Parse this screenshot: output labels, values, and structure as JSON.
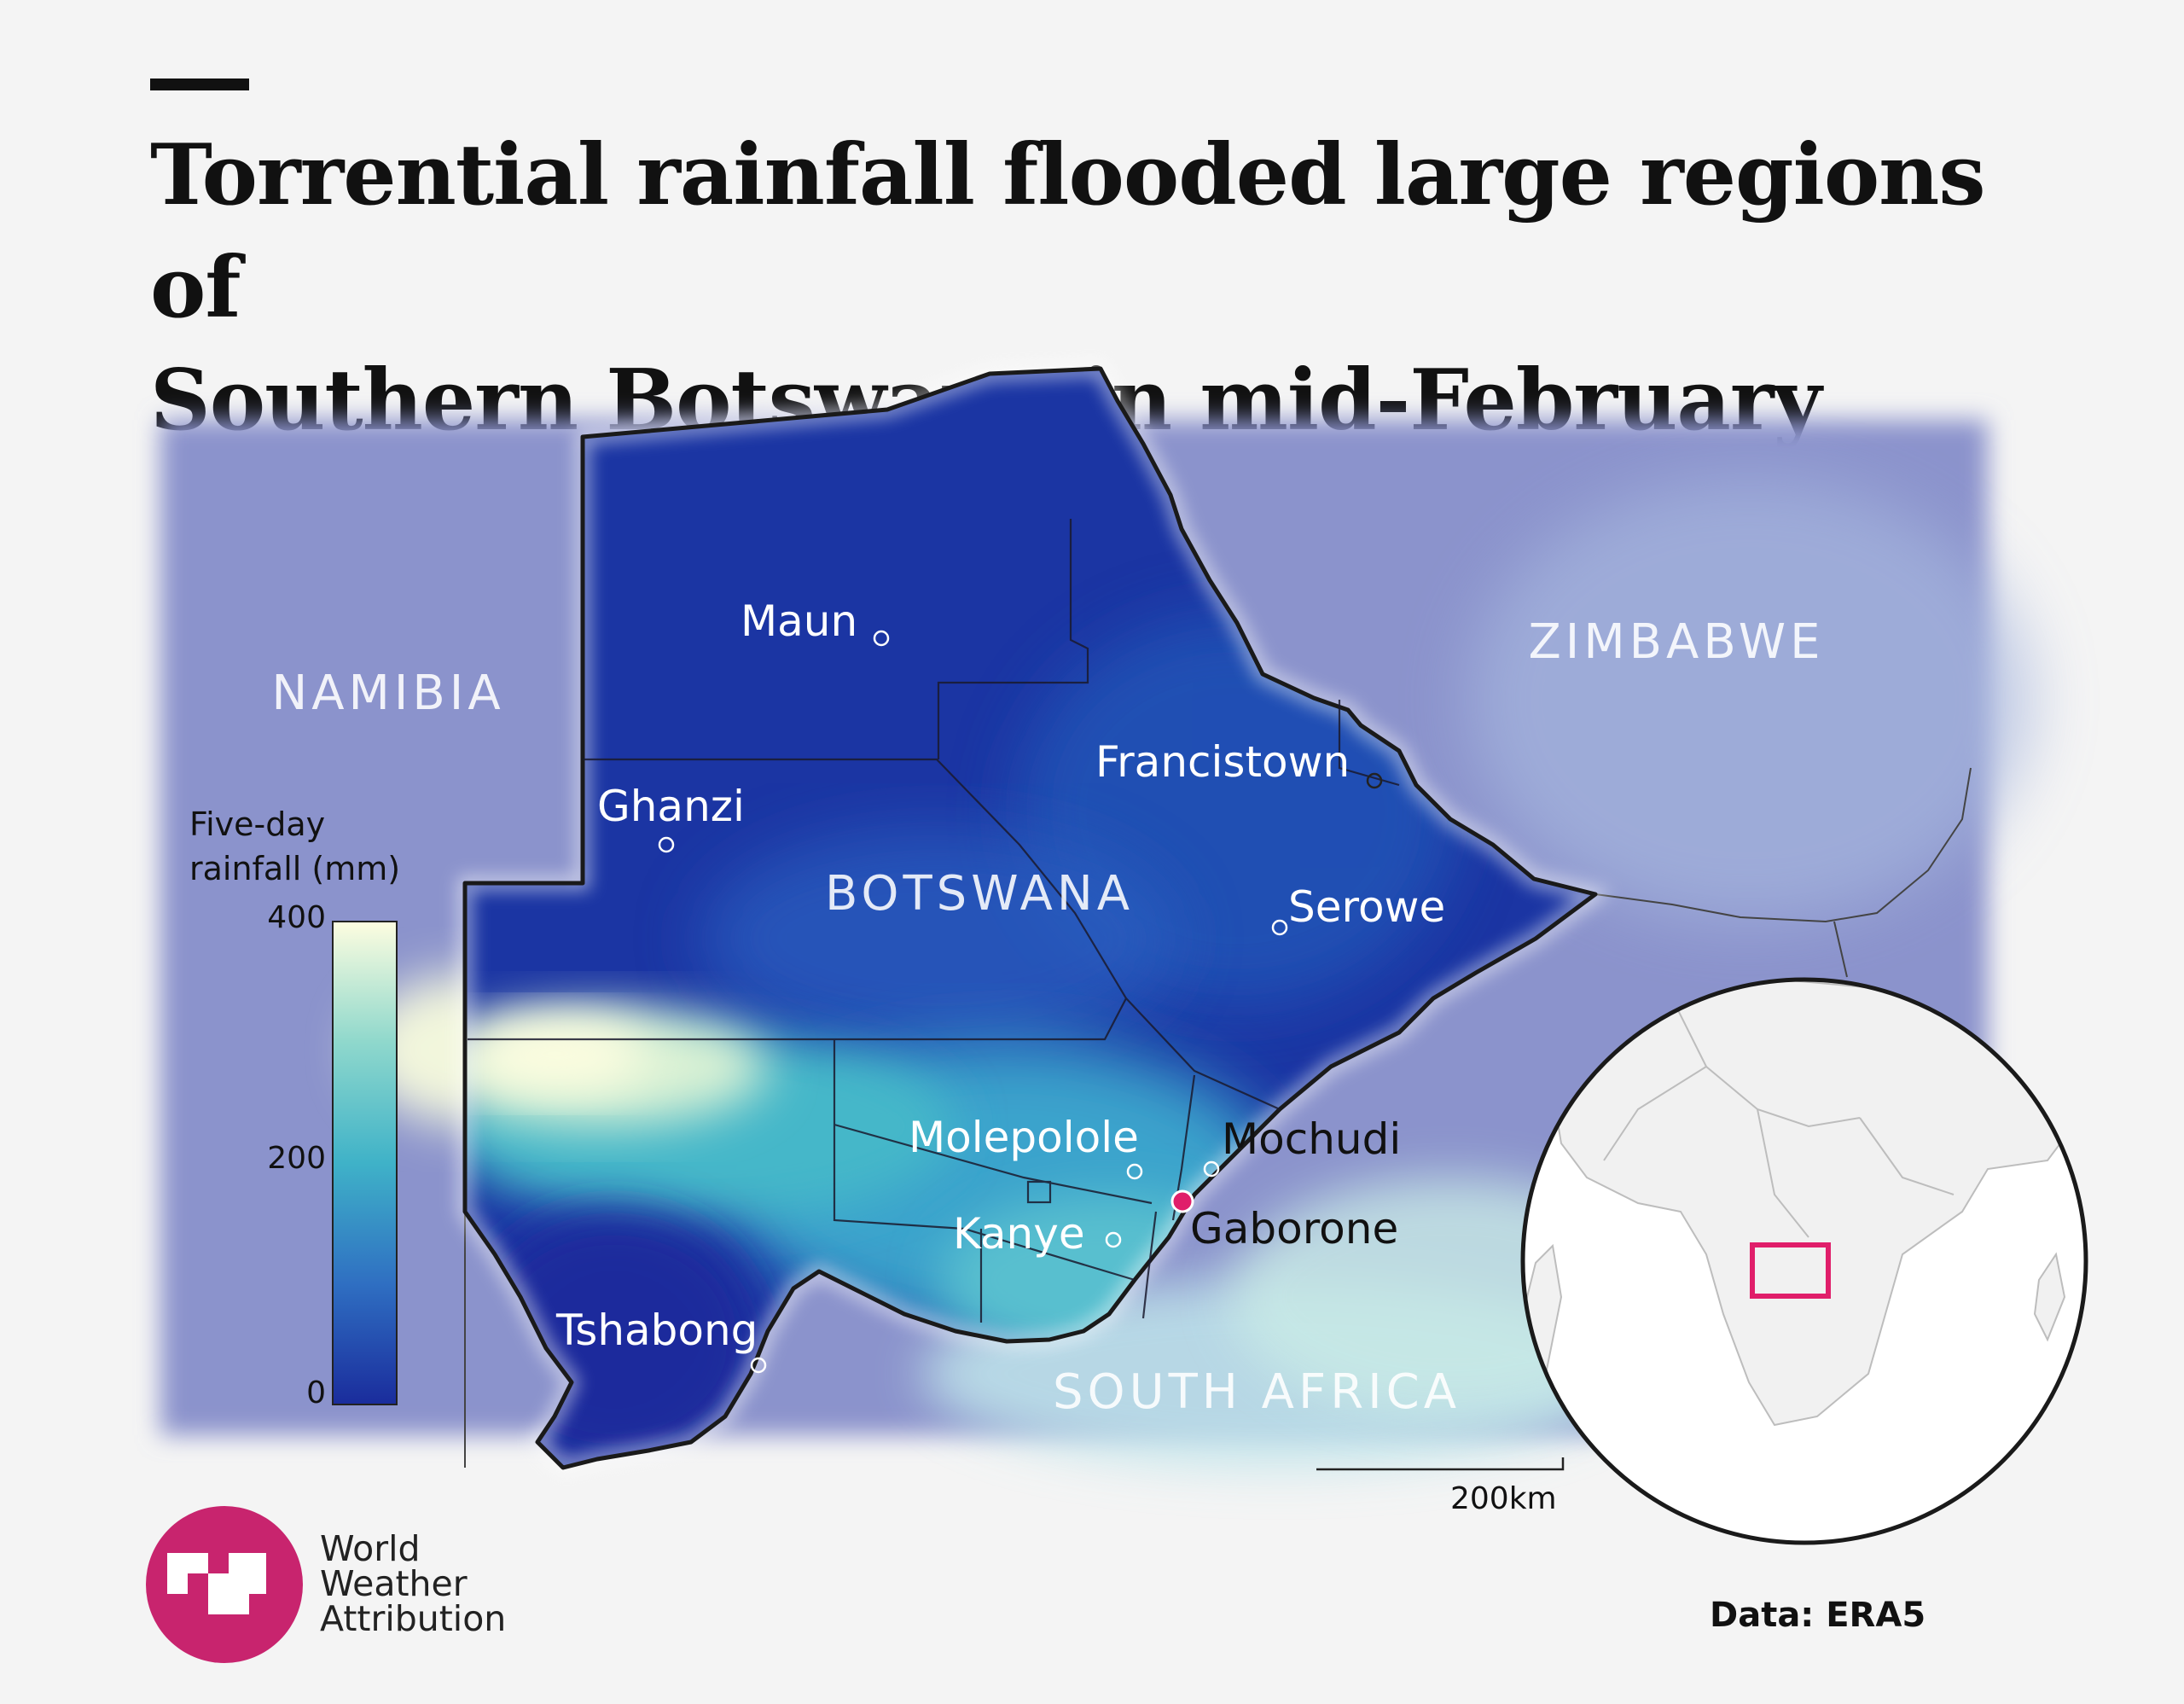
{
  "header": {
    "title_line1": "Torrential rainfall flooded large regions of",
    "title_line2": "Southern Botswana in mid-February"
  },
  "map": {
    "countries": {
      "namibia": "NAMIBIA",
      "zimbabwe": "ZIMBABWE",
      "botswana": "BOTSWANA",
      "south_africa": "SOUTH AFRICA"
    },
    "cities": [
      {
        "name": "Maun"
      },
      {
        "name": "Francistown"
      },
      {
        "name": "Ghanzi"
      },
      {
        "name": "Serowe"
      },
      {
        "name": "Molepolole"
      },
      {
        "name": "Mochudi"
      },
      {
        "name": "Kanye"
      },
      {
        "name": "Gaborone",
        "highlighted": true
      },
      {
        "name": "Tshabong"
      }
    ],
    "highlight_color": "#e01e6a",
    "scale_bar": "200km"
  },
  "legend": {
    "title_line1": "Five-day",
    "title_line2": "rainfall (mm)",
    "ticks": [
      "400",
      "200",
      "0"
    ],
    "range": [
      0,
      400
    ],
    "colors": [
      "#1a2c9c",
      "#2f6fc2",
      "#3fb2c8",
      "#8fd8cc",
      "#fdfde0"
    ]
  },
  "inset": {
    "type": "globe",
    "highlight": "southern Africa box",
    "highlight_color": "#e01e6a"
  },
  "footer": {
    "logo_line1": "World",
    "logo_line2": "Weather",
    "logo_line3": "Attribution",
    "logo_color": "#c8246e",
    "source": "Data: ERA5"
  }
}
